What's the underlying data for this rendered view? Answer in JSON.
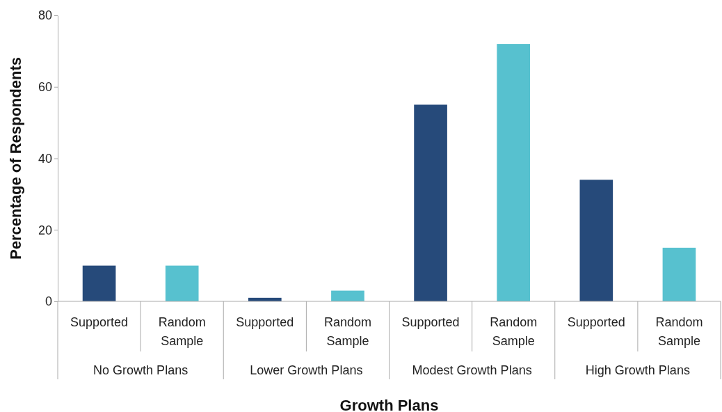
{
  "chart_data": {
    "type": "bar",
    "xlabel": "Growth Plans",
    "ylabel": "Percentage of Respondents",
    "categories": [
      "No Growth Plans",
      "Lower Growth Plans",
      "Modest Growth Plans",
      "High Growth Plans"
    ],
    "series": [
      {
        "name": "Supported",
        "color": "#264a7a",
        "values": [
          10,
          1,
          55,
          34
        ]
      },
      {
        "name": "Random Sample",
        "color": "#57c1cf",
        "values": [
          10,
          3,
          72,
          15
        ]
      }
    ],
    "ylim": [
      0,
      80
    ],
    "yticks": [
      0,
      20,
      40,
      60,
      80
    ],
    "grid": false,
    "legend": false
  }
}
